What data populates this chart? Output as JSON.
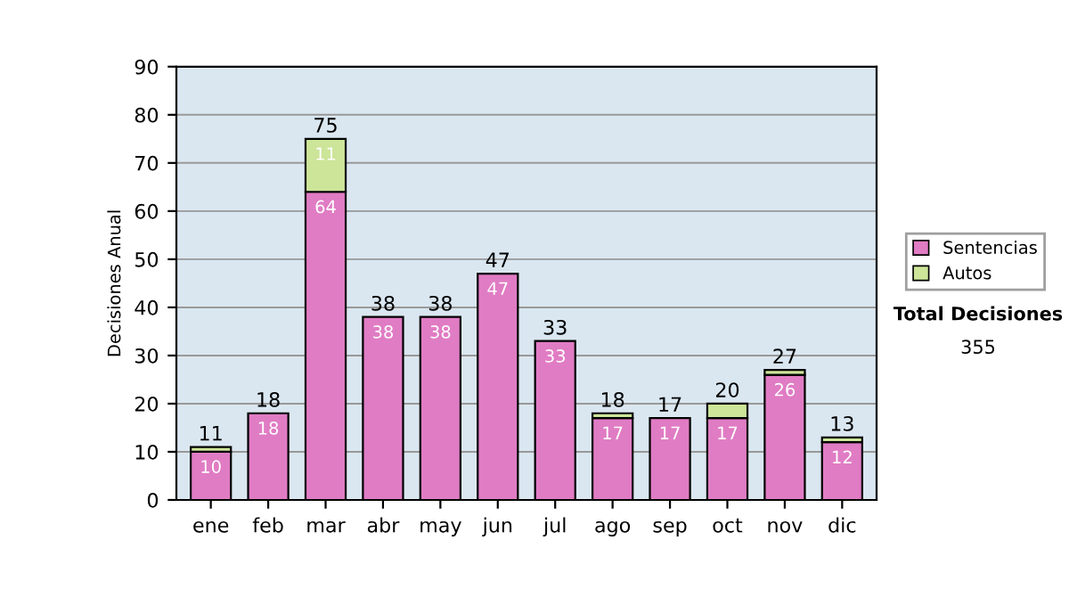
{
  "chart_data": {
    "type": "bar",
    "ylabel": "Decisiones Anual",
    "categories": [
      "ene",
      "feb",
      "mar",
      "abr",
      "may",
      "jun",
      "jul",
      "ago",
      "sep",
      "oct",
      "nov",
      "dic"
    ],
    "series": [
      {
        "name": "Sentencias",
        "color": "#e07cc4",
        "values": [
          10,
          18,
          64,
          38,
          38,
          47,
          33,
          17,
          17,
          17,
          26,
          12
        ],
        "value_labels": [
          "10",
          "18",
          "64",
          "38",
          "38",
          "47",
          "33",
          "17",
          "17",
          "17",
          "26",
          "12"
        ]
      },
      {
        "name": "Autos",
        "color": "#cce599",
        "values": [
          1,
          0,
          11,
          0,
          0,
          0,
          0,
          1,
          0,
          3,
          1,
          1
        ],
        "value_labels": [
          null,
          null,
          "11",
          null,
          null,
          null,
          null,
          null,
          null,
          null,
          null,
          null
        ]
      }
    ],
    "stacked": true,
    "totals": [
      "11",
      "18",
      "75",
      "38",
      "38",
      "47",
      "33",
      "18",
      "17",
      "20",
      "27",
      "13"
    ],
    "ylim": [
      0,
      90
    ],
    "yticks": [
      0,
      10,
      20,
      30,
      40,
      50,
      60,
      70,
      80,
      90
    ],
    "grid": "y",
    "legend": "right",
    "annotations": [
      "Total Decisiones",
      "355"
    ]
  }
}
